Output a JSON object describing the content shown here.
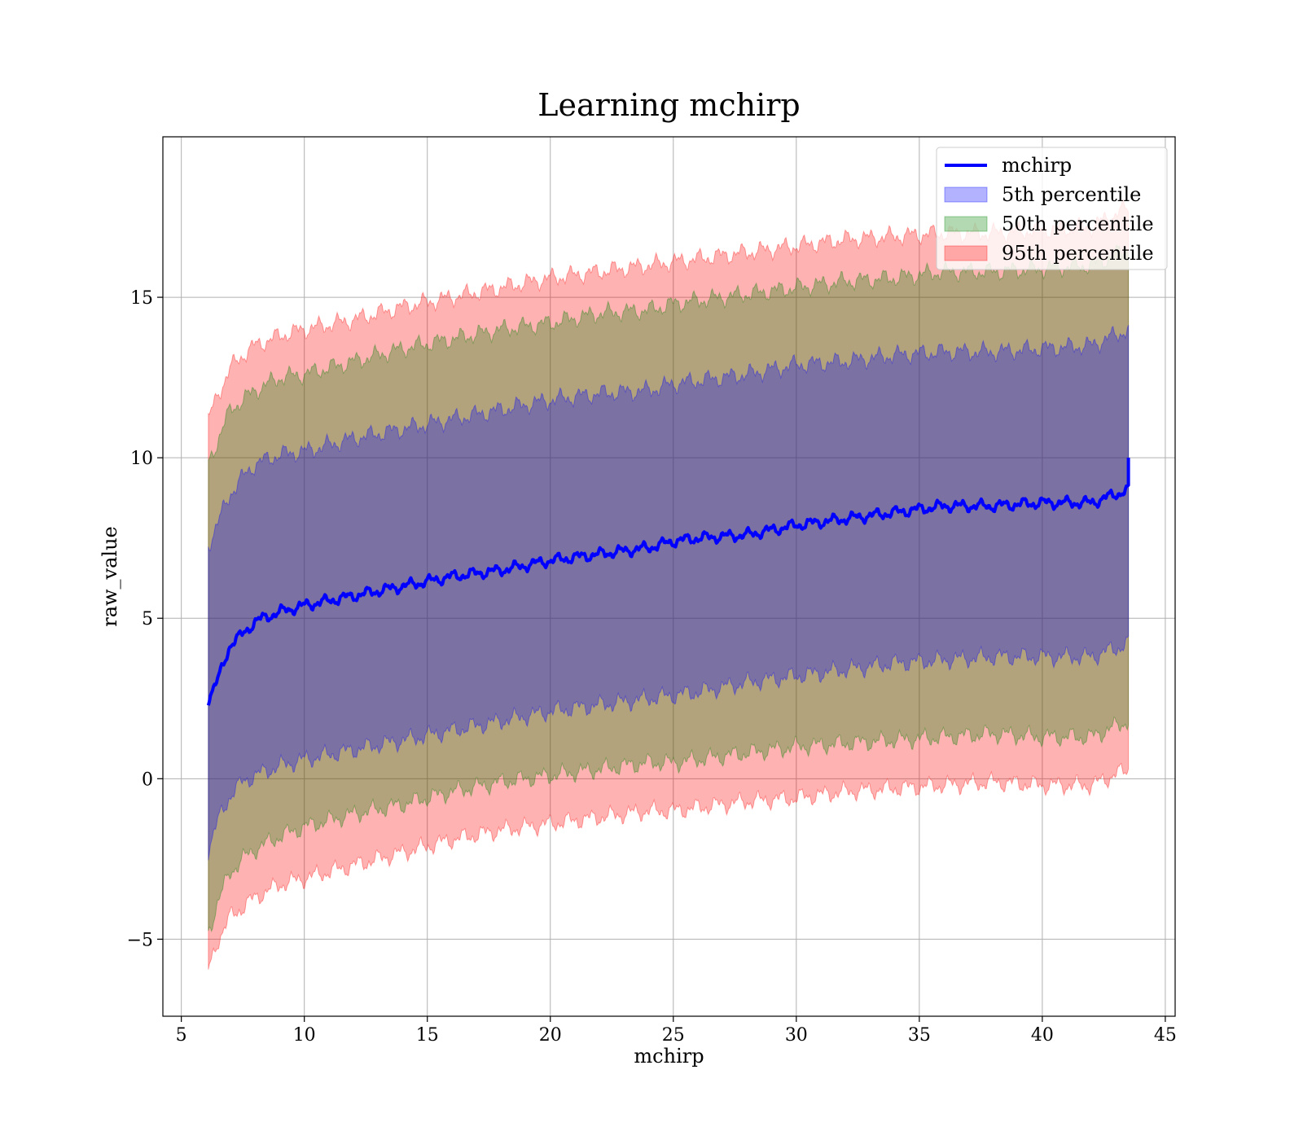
{
  "chart_data": {
    "type": "area",
    "title": "Learning mchirp",
    "xlabel": "mchirp",
    "ylabel": "raw_value",
    "xlim": [
      4.25,
      45.4
    ],
    "ylim": [
      -7.4,
      20.0
    ],
    "xticks": [
      5,
      10,
      15,
      20,
      25,
      30,
      35,
      40,
      45
    ],
    "xtick_labels": [
      "5",
      "10",
      "15",
      "20",
      "25",
      "30",
      "35",
      "40",
      "45"
    ],
    "yticks": [
      -5,
      0,
      5,
      10,
      15
    ],
    "ytick_labels": [
      "−5",
      "0",
      "5",
      "10",
      "15"
    ],
    "grid": true,
    "legend_position": "top-right",
    "x": [
      6.1,
      6.5,
      7.0,
      7.5,
      8.0,
      9.0,
      10.0,
      12.0,
      14.0,
      16.0,
      18.0,
      20.0,
      22.0,
      24.0,
      25.0,
      26.0,
      28.0,
      30.0,
      32.0,
      34.0,
      36.0,
      38.0,
      40.0,
      42.0,
      43.5
    ],
    "mean": [
      2.5,
      3.1,
      4.2,
      4.5,
      4.9,
      5.2,
      5.4,
      5.7,
      6.0,
      6.3,
      6.5,
      6.8,
      7.0,
      7.2,
      7.4,
      7.5,
      7.6,
      7.9,
      8.1,
      8.3,
      8.5,
      8.5,
      8.6,
      8.6,
      9.0
    ],
    "series": [
      {
        "name": "5th percentile",
        "color": "#0000ff",
        "alpha": 0.3,
        "upper": [
          7.3,
          8.0,
          8.9,
          9.4,
          9.8,
          10.1,
          10.2,
          10.6,
          10.9,
          11.2,
          11.5,
          11.8,
          12.0,
          12.1,
          12.3,
          12.4,
          12.6,
          12.9,
          13.0,
          13.2,
          13.3,
          13.3,
          13.4,
          13.5,
          14.0
        ],
        "lower": [
          -2.2,
          -1.3,
          -0.5,
          -0.1,
          0.1,
          0.4,
          0.6,
          0.9,
          1.2,
          1.5,
          1.8,
          2.1,
          2.3,
          2.5,
          2.6,
          2.7,
          3.0,
          3.2,
          3.4,
          3.6,
          3.7,
          3.8,
          3.8,
          3.8,
          4.2
        ]
      },
      {
        "name": "50th percentile",
        "color": "#008000",
        "alpha": 0.3,
        "upper": [
          9.8,
          10.6,
          11.5,
          11.8,
          12.1,
          12.5,
          12.6,
          13.0,
          13.4,
          13.7,
          14.0,
          14.2,
          14.5,
          14.6,
          14.8,
          14.9,
          15.1,
          15.3,
          15.5,
          15.6,
          15.8,
          15.8,
          15.9,
          16.0,
          16.5
        ],
        "lower": [
          -4.8,
          -3.8,
          -2.9,
          -2.5,
          -2.2,
          -1.8,
          -1.5,
          -1.1,
          -0.8,
          -0.4,
          -0.1,
          0.1,
          0.3,
          0.5,
          0.5,
          0.6,
          0.8,
          1.0,
          1.1,
          1.2,
          1.3,
          1.4,
          1.3,
          1.3,
          1.8
        ]
      },
      {
        "name": "95th percentile",
        "color": "#ff0000",
        "alpha": 0.3,
        "upper": [
          11.2,
          12.0,
          12.8,
          13.2,
          13.5,
          13.8,
          14.0,
          14.3,
          14.7,
          15.0,
          15.3,
          15.6,
          15.8,
          16.0,
          16.1,
          16.2,
          16.4,
          16.6,
          16.8,
          16.9,
          17.0,
          17.0,
          17.1,
          17.2,
          17.8
        ],
        "lower": [
          -6.0,
          -5.0,
          -4.3,
          -4.0,
          -3.7,
          -3.3,
          -3.1,
          -2.7,
          -2.3,
          -1.9,
          -1.6,
          -1.4,
          -1.2,
          -1.0,
          -1.0,
          -0.9,
          -0.7,
          -0.6,
          -0.4,
          -0.3,
          -0.2,
          -0.1,
          -0.2,
          -0.2,
          0.3
        ]
      }
    ],
    "line": {
      "name": "mchirp",
      "color": "#0000ff"
    }
  }
}
